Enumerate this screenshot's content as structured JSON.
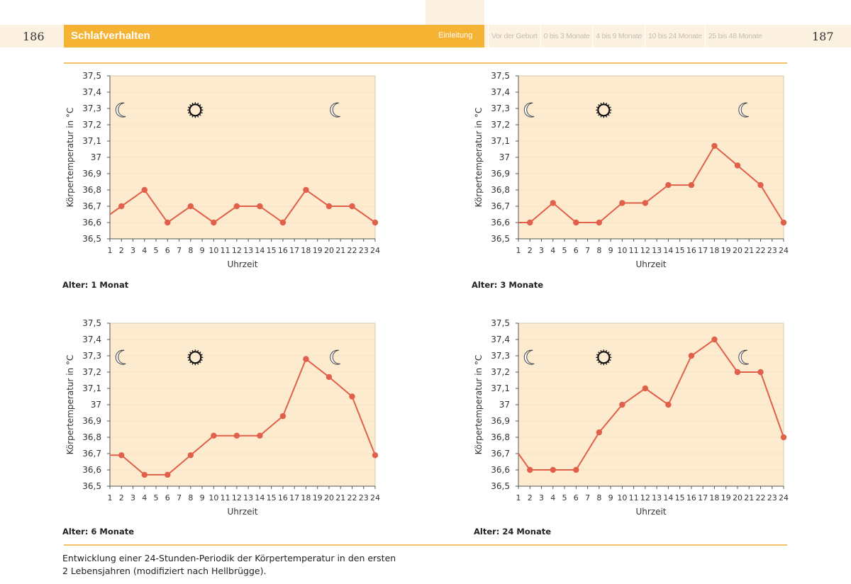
{
  "header": {
    "page_left": "186",
    "page_right": "187",
    "section_title": "Schlafverhalten",
    "active_tab": "Einleitung",
    "tabs": [
      "Vor der Geburt",
      "0 bis 3 Monate",
      "4 bis 9 Monate",
      "10 bis 24 Monate",
      "25 bis 48 Monate"
    ]
  },
  "caption": {
    "line1": "Entwicklung einer 24-Stunden-Periodik der Körpertemperatur in den ersten",
    "line2": "2 Lebensjahren (modifiziert nach Hellbrügge)."
  },
  "colors": {
    "accent": "#f6b233",
    "plot_bg": "#fdebd0",
    "line": "#e0604a",
    "band": "#fdf1e2"
  },
  "chart_data": [
    {
      "type": "line",
      "label": "Alter: 1 Monat",
      "xlabel": "Uhrzeit",
      "ylabel": "Körpertemperatur in °C",
      "xlim": [
        1,
        24
      ],
      "ylim": [
        36.5,
        37.5
      ],
      "xticks": [
        1,
        2,
        3,
        4,
        5,
        6,
        7,
        8,
        9,
        10,
        11,
        12,
        13,
        14,
        15,
        16,
        17,
        18,
        19,
        20,
        21,
        22,
        23,
        24
      ],
      "yticks": [
        "36,5",
        "36,6",
        "36,7",
        "36,8",
        "36,9",
        "37",
        "37,1",
        "37,2",
        "37,3",
        "37,4",
        "37,5"
      ],
      "x": [
        1,
        2,
        4,
        6,
        8,
        10,
        12,
        14,
        16,
        18,
        20,
        22,
        24
      ],
      "y": [
        36.65,
        36.7,
        36.8,
        36.6,
        36.7,
        36.6,
        36.7,
        36.7,
        36.6,
        36.8,
        36.7,
        36.7,
        36.6
      ],
      "icons": [
        {
          "icon": "moon",
          "x": 2,
          "y": 37.29
        },
        {
          "icon": "sun",
          "x": 8.4,
          "y": 37.29
        },
        {
          "icon": "moon",
          "x": 20.6,
          "y": 37.29
        }
      ]
    },
    {
      "type": "line",
      "label": "Alter: 3 Monate",
      "xlabel": "Uhrzeit",
      "ylabel": "Körpertemperatur in °C",
      "xlim": [
        1,
        24
      ],
      "ylim": [
        36.5,
        37.5
      ],
      "xticks": [
        1,
        2,
        3,
        4,
        5,
        6,
        7,
        8,
        9,
        10,
        11,
        12,
        13,
        14,
        15,
        16,
        17,
        18,
        19,
        20,
        21,
        22,
        23,
        24
      ],
      "yticks": [
        "36,5",
        "36,6",
        "36,7",
        "36,8",
        "36,9",
        "37",
        "37,1",
        "37,2",
        "37,3",
        "37,4",
        "37,5"
      ],
      "x": [
        1,
        2,
        4,
        6,
        8,
        10,
        12,
        14,
        16,
        18,
        20,
        22,
        24
      ],
      "y": [
        36.6,
        36.6,
        36.72,
        36.6,
        36.6,
        36.72,
        36.72,
        36.83,
        36.83,
        37.07,
        36.95,
        36.83,
        36.6
      ],
      "icons": [
        {
          "icon": "moon",
          "x": 2,
          "y": 37.29
        },
        {
          "icon": "sun",
          "x": 8.4,
          "y": 37.29
        },
        {
          "icon": "moon",
          "x": 20.6,
          "y": 37.29
        }
      ]
    },
    {
      "type": "line",
      "label": "Alter: 6 Monate",
      "xlabel": "Uhrzeit",
      "ylabel": "Körpertemperatur in °C",
      "xlim": [
        1,
        24
      ],
      "ylim": [
        36.5,
        37.5
      ],
      "xticks": [
        1,
        2,
        3,
        4,
        5,
        6,
        7,
        8,
        9,
        10,
        11,
        12,
        13,
        14,
        15,
        16,
        17,
        18,
        19,
        20,
        21,
        22,
        23,
        24
      ],
      "yticks": [
        "36,5",
        "36,6",
        "36,7",
        "36,8",
        "36,9",
        "37",
        "37,1",
        "37,2",
        "37,3",
        "37,4",
        "37,5"
      ],
      "x": [
        1,
        2,
        4,
        6,
        8,
        10,
        12,
        14,
        16,
        18,
        20,
        22,
        24
      ],
      "y": [
        36.69,
        36.69,
        36.57,
        36.57,
        36.69,
        36.81,
        36.81,
        36.81,
        36.93,
        37.28,
        37.17,
        37.05,
        36.69
      ],
      "icons": [
        {
          "icon": "moon",
          "x": 2,
          "y": 37.29
        },
        {
          "icon": "sun",
          "x": 8.4,
          "y": 37.29
        },
        {
          "icon": "moon",
          "x": 20.6,
          "y": 37.29
        }
      ]
    },
    {
      "type": "line",
      "label": "Alter: 24 Monate",
      "xlabel": "Uhrzeit",
      "ylabel": "Körpertemperatur in °C",
      "xlim": [
        1,
        24
      ],
      "ylim": [
        36.5,
        37.5
      ],
      "xticks": [
        1,
        2,
        3,
        4,
        5,
        6,
        7,
        8,
        9,
        10,
        11,
        12,
        13,
        14,
        15,
        16,
        17,
        18,
        19,
        20,
        21,
        22,
        23,
        24
      ],
      "yticks": [
        "36,5",
        "36,6",
        "36,7",
        "36,8",
        "36,9",
        "37",
        "37,1",
        "37,2",
        "37,3",
        "37,4",
        "37,5"
      ],
      "x": [
        1,
        2,
        4,
        6,
        8,
        10,
        12,
        14,
        16,
        18,
        20,
        22,
        24
      ],
      "y": [
        36.7,
        36.6,
        36.6,
        36.6,
        36.83,
        37.0,
        37.1,
        37.0,
        37.3,
        37.4,
        37.2,
        37.2,
        36.8
      ],
      "icons": [
        {
          "icon": "moon",
          "x": 2,
          "y": 37.29
        },
        {
          "icon": "sun",
          "x": 8.4,
          "y": 37.29
        },
        {
          "icon": "moon",
          "x": 20.6,
          "y": 37.29
        }
      ]
    }
  ]
}
